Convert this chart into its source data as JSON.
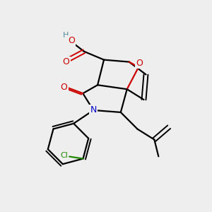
{
  "bg_color": "#eeeeee",
  "atom_colors": {
    "C": "#000000",
    "O": "#cc0000",
    "N": "#0000cc",
    "Cl": "#228800",
    "H": "#558899"
  },
  "bond_color": "#000000",
  "figsize": [
    3.0,
    3.0
  ],
  "dpi": 100
}
